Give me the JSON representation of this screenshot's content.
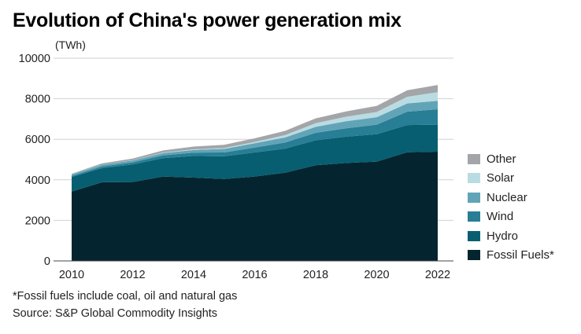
{
  "title": "Evolution of China's power generation mix",
  "unit_label": "(TWh)",
  "footnote": "*Fossil fuels include coal, oil and natural gas",
  "source": "Source: S&P Global Commodity Insights",
  "chart_data": {
    "type": "area",
    "stacked": true,
    "title": "Evolution of China's power generation mix",
    "ylabel": "(TWh)",
    "xlabel": "",
    "x": [
      2010,
      2011,
      2012,
      2013,
      2014,
      2015,
      2016,
      2017,
      2018,
      2019,
      2020,
      2021,
      2022
    ],
    "x_ticks": [
      "2010",
      "2012",
      "2014",
      "2016",
      "2018",
      "2020",
      "2022"
    ],
    "y_ticks": [
      "0",
      "2000",
      "4000",
      "6000",
      "8000",
      "10000"
    ],
    "ylim": [
      0,
      10000
    ],
    "xlim": [
      2010,
      2022
    ],
    "grid": "horizontal",
    "legend_position": "right",
    "series": [
      {
        "name": "Fossil Fuels*",
        "color": "#04252f",
        "values": [
          3420,
          3880,
          3890,
          4160,
          4110,
          4040,
          4160,
          4350,
          4720,
          4830,
          4900,
          5360,
          5390
        ]
      },
      {
        "name": "Hydro",
        "color": "#075e70",
        "values": [
          720,
          700,
          870,
          910,
          1070,
          1120,
          1190,
          1190,
          1230,
          1300,
          1350,
          1340,
          1330
        ]
      },
      {
        "name": "Wind",
        "color": "#287e94",
        "values": [
          50,
          80,
          100,
          140,
          160,
          190,
          240,
          300,
          370,
          410,
          470,
          660,
          760
        ]
      },
      {
        "name": "Nuclear",
        "color": "#62a4b7",
        "values": [
          75,
          87,
          98,
          112,
          132,
          171,
          213,
          248,
          294,
          348,
          366,
          408,
          418
        ]
      },
      {
        "name": "Solar",
        "color": "#b9dce3",
        "values": [
          2,
          6,
          10,
          20,
          30,
          45,
          66,
          118,
          177,
          224,
          261,
          327,
          428
        ]
      },
      {
        "name": "Other",
        "color": "#a3a5a8",
        "values": [
          30,
          60,
          80,
          110,
          140,
          160,
          180,
          210,
          240,
          260,
          300,
          320,
          350
        ]
      }
    ]
  }
}
